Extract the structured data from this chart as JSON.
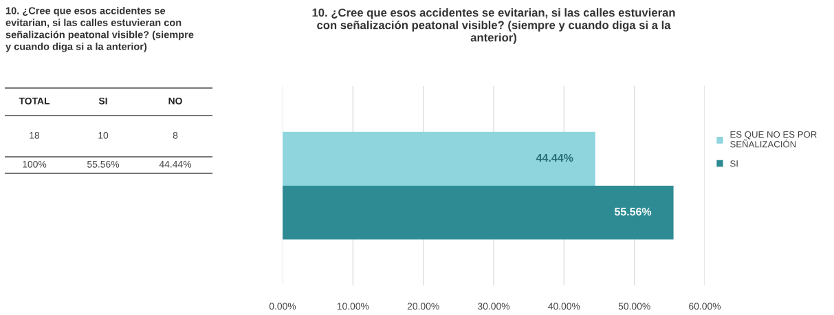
{
  "chart_data": [
    {
      "type": "other",
      "title": "10. ¿Cree que esos accidentes se\nevitarian, si las calles estuvieran con\nseñalización peatonal visible? (siempre\ny cuando diga si a la anterior)",
      "categories": [
        "TOTAL",
        "SI",
        "NO"
      ],
      "cell_labels": [
        [
          "18",
          "10",
          "8"
        ],
        [
          "100%",
          "55.56%",
          "44.44%"
        ]
      ]
    },
    {
      "type": "bar",
      "orientation": "horizontal",
      "title": "10. ¿Cree que esos accidentes se evitarian, si las calles estuvieran\ncon señalización peatonal visible? (siempre y cuando diga si a la\nanterior)",
      "categories": [
        null
      ],
      "series": [
        {
          "name": "ES QUE NO ES POR\nSEÑALIZACIÓN",
          "color": "#8fd5dd",
          "values": [
            44.44
          ],
          "value_labels": [
            "44.44%"
          ]
        },
        {
          "name": "SI",
          "color": "#2e8b93",
          "values": [
            55.56
          ],
          "value_labels": [
            "55.56%"
          ]
        }
      ],
      "xlim": [
        0,
        60
      ],
      "xticks": [
        {
          "value": 0,
          "label": "0.00%"
        },
        {
          "value": 10,
          "label": "10.00%"
        },
        {
          "value": 20,
          "label": "20.00%"
        },
        {
          "value": 30,
          "label": "30.00%"
        },
        {
          "value": 40,
          "label": "40.00%"
        },
        {
          "value": 50,
          "label": "50.00%"
        },
        {
          "value": 60,
          "label": "60.00%"
        }
      ],
      "grid": "x",
      "legend": "right"
    }
  ]
}
